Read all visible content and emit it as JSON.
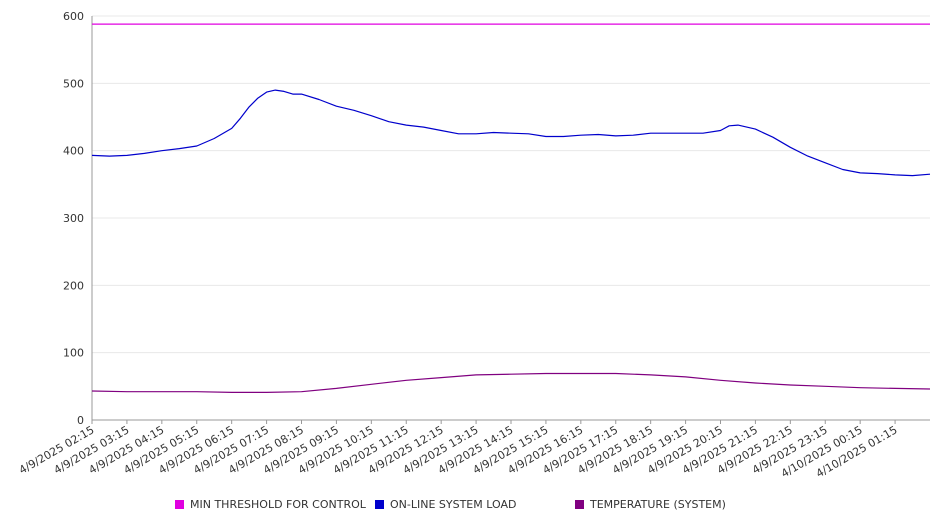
{
  "colors": {
    "threshold": "#e000e0",
    "load": "#0000cc",
    "temperature": "#800080",
    "grid": "#e8e8e8",
    "axis": "#999999",
    "text": "#333333"
  },
  "chart_data": {
    "type": "line",
    "title": "",
    "xlabel": "",
    "ylabel": "",
    "ylim": [
      0,
      600
    ],
    "y_ticks": [
      "0",
      "100",
      "200",
      "300",
      "400",
      "500",
      "600"
    ],
    "x_tick_labels": [
      "4/9/2025 02:15",
      "4/9/2025 03:15",
      "4/9/2025 04:15",
      "4/9/2025 05:15",
      "4/9/2025 06:15",
      "4/9/2025 07:15",
      "4/9/2025 08:15",
      "4/9/2025 09:15",
      "4/9/2025 10:15",
      "4/9/2025 11:15",
      "4/9/2025 12:15",
      "4/9/2025 13:15",
      "4/9/2025 14:15",
      "4/9/2025 15:15",
      "4/9/2025 16:15",
      "4/9/2025 17:15",
      "4/9/2025 18:15",
      "4/9/2025 19:15",
      "4/9/2025 20:15",
      "4/9/2025 21:15",
      "4/9/2025 22:15",
      "4/9/2025 23:15",
      "4/10/2025 00:15",
      "4/10/2025 01:15"
    ],
    "grid": true,
    "legend_position": "bottom",
    "series": [
      {
        "name": "MIN THRESHOLD FOR CONTROL",
        "x": [
          "4/9/2025 02:15",
          "4/10/2025 02:15"
        ],
        "values": [
          588,
          588
        ]
      },
      {
        "name": "ON-LINE SYSTEM LOAD",
        "x": [
          "4/9/2025 02:15",
          "4/9/2025 02:45",
          "4/9/2025 03:15",
          "4/9/2025 03:45",
          "4/9/2025 04:15",
          "4/9/2025 04:45",
          "4/9/2025 05:15",
          "4/9/2025 05:45",
          "4/9/2025 06:15",
          "4/9/2025 06:30",
          "4/9/2025 06:45",
          "4/9/2025 07:00",
          "4/9/2025 07:15",
          "4/9/2025 07:30",
          "4/9/2025 07:45",
          "4/9/2025 08:00",
          "4/9/2025 08:15",
          "4/9/2025 08:45",
          "4/9/2025 09:15",
          "4/9/2025 09:45",
          "4/9/2025 10:15",
          "4/9/2025 10:45",
          "4/9/2025 11:15",
          "4/9/2025 11:45",
          "4/9/2025 12:15",
          "4/9/2025 12:45",
          "4/9/2025 13:15",
          "4/9/2025 13:45",
          "4/9/2025 14:15",
          "4/9/2025 14:45",
          "4/9/2025 15:15",
          "4/9/2025 15:45",
          "4/9/2025 16:15",
          "4/9/2025 16:45",
          "4/9/2025 17:15",
          "4/9/2025 17:45",
          "4/9/2025 18:15",
          "4/9/2025 18:45",
          "4/9/2025 19:15",
          "4/9/2025 19:45",
          "4/9/2025 20:15",
          "4/9/2025 20:30",
          "4/9/2025 20:45",
          "4/9/2025 21:00",
          "4/9/2025 21:15",
          "4/9/2025 21:45",
          "4/9/2025 22:15",
          "4/9/2025 22:45",
          "4/9/2025 23:15",
          "4/9/2025 23:45",
          "4/10/2025 00:15",
          "4/10/2025 00:45",
          "4/10/2025 01:15",
          "4/10/2025 01:45",
          "4/10/2025 02:15"
        ],
        "values": [
          393,
          392,
          393,
          396,
          400,
          403,
          407,
          418,
          433,
          448,
          465,
          478,
          487,
          490,
          488,
          484,
          484,
          476,
          466,
          460,
          452,
          443,
          438,
          435,
          430,
          425,
          425,
          427,
          426,
          425,
          421,
          421,
          423,
          424,
          422,
          423,
          426,
          426,
          426,
          426,
          430,
          437,
          438,
          435,
          432,
          420,
          405,
          392,
          382,
          372,
          367,
          366,
          364,
          363,
          365
        ]
      },
      {
        "name": "TEMPERATURE (SYSTEM)",
        "x": [
          "4/9/2025 02:15",
          "4/9/2025 03:15",
          "4/9/2025 04:15",
          "4/9/2025 05:15",
          "4/9/2025 06:15",
          "4/9/2025 07:15",
          "4/9/2025 08:15",
          "4/9/2025 09:15",
          "4/9/2025 10:15",
          "4/9/2025 11:15",
          "4/9/2025 12:15",
          "4/9/2025 13:15",
          "4/9/2025 14:15",
          "4/9/2025 15:15",
          "4/9/2025 16:15",
          "4/9/2025 17:15",
          "4/9/2025 18:15",
          "4/9/2025 19:15",
          "4/9/2025 20:15",
          "4/9/2025 21:15",
          "4/9/2025 22:15",
          "4/9/2025 23:15",
          "4/10/2025 00:15",
          "4/10/2025 01:15",
          "4/10/2025 02:15"
        ],
        "values": [
          43,
          42,
          42,
          42,
          41,
          41,
          42,
          47,
          53,
          59,
          63,
          67,
          68,
          69,
          69,
          69,
          67,
          64,
          59,
          55,
          52,
          50,
          48,
          47,
          46
        ]
      }
    ]
  }
}
